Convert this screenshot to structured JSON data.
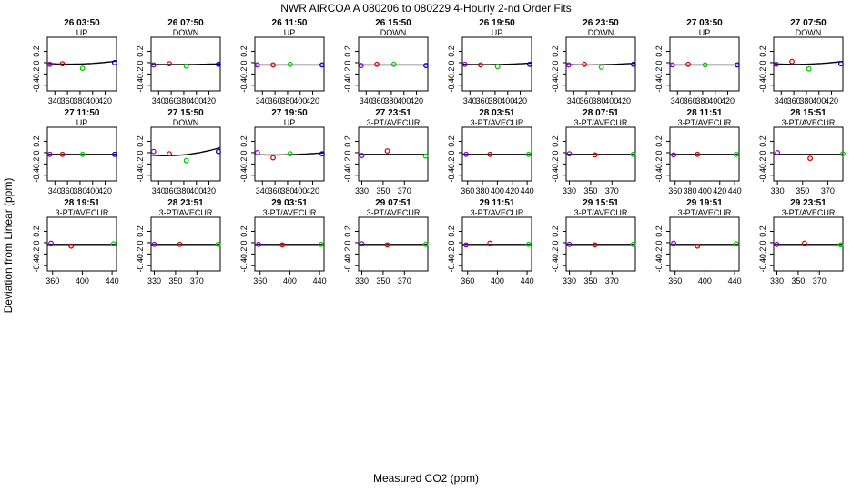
{
  "page": {
    "title": "NWR   AIRCOA A   080206 to 080229   4-Hourly 2-nd Order Fits",
    "xlabel": "Measured CO2 (ppm)",
    "ylabel": "Deviation from Linear (ppm)"
  },
  "colors": {
    "axis": "#000000",
    "curve": "#000000",
    "point_low": "#8800cc",
    "point_mid": "#dd0000",
    "point_high": "#00cc00",
    "point_top": "#0000cc"
  },
  "chart_data": [
    {
      "type": "scatter",
      "title": "26 03:50",
      "subtitle": "UP",
      "ylim": [
        -0.5,
        0.45
      ],
      "yticks": [
        -0.4,
        -0.2,
        0,
        0.2
      ],
      "xlim": [
        328,
        438
      ],
      "xticks": [
        340,
        360,
        380,
        400,
        420
      ],
      "points": [
        [
          332,
          -0.03
        ],
        [
          352,
          -0.02
        ],
        [
          384,
          -0.1
        ],
        [
          435,
          0.0
        ]
      ],
      "curve": [
        -0.014,
        -0.077,
        0.12
      ]
    },
    {
      "type": "scatter",
      "title": "26 07:50",
      "subtitle": "DOWN",
      "ylim": [
        -0.5,
        0.45
      ],
      "yticks": [
        -0.4,
        -0.2,
        0,
        0.2
      ],
      "xlim": [
        328,
        438
      ],
      "xticks": [
        340,
        360,
        380,
        400,
        420
      ],
      "points": [
        [
          332,
          -0.04
        ],
        [
          357,
          -0.02
        ],
        [
          384,
          -0.06
        ],
        [
          435,
          -0.03
        ]
      ],
      "curve": [
        -0.03,
        -0.02,
        0.03
      ]
    },
    {
      "type": "scatter",
      "title": "26 11:50",
      "subtitle": "UP",
      "ylim": [
        -0.5,
        0.45
      ],
      "yticks": [
        -0.4,
        -0.2,
        0,
        0.2
      ],
      "xlim": [
        328,
        438
      ],
      "xticks": [
        340,
        360,
        380,
        400,
        420
      ],
      "points": [
        [
          332,
          -0.04
        ],
        [
          357,
          -0.04
        ],
        [
          384,
          -0.03
        ],
        [
          435,
          -0.04
        ]
      ],
      "curve": [
        -0.04,
        0,
        0
      ]
    },
    {
      "type": "scatter",
      "title": "26 15:50",
      "subtitle": "DOWN",
      "ylim": [
        -0.5,
        0.45
      ],
      "yticks": [
        -0.4,
        -0.2,
        0,
        0.2
      ],
      "xlim": [
        328,
        438
      ],
      "xticks": [
        340,
        360,
        380,
        400,
        420
      ],
      "points": [
        [
          332,
          -0.05
        ],
        [
          357,
          -0.03
        ],
        [
          384,
          -0.03
        ],
        [
          435,
          -0.05
        ]
      ],
      "curve": [
        -0.04,
        0,
        0
      ]
    },
    {
      "type": "scatter",
      "title": "26 19:50",
      "subtitle": "UP",
      "ylim": [
        -0.5,
        0.45
      ],
      "yticks": [
        -0.4,
        -0.2,
        0,
        0.2
      ],
      "xlim": [
        328,
        438
      ],
      "xticks": [
        340,
        360,
        380,
        400,
        420
      ],
      "points": [
        [
          332,
          -0.03
        ],
        [
          357,
          -0.04
        ],
        [
          384,
          -0.07
        ],
        [
          435,
          -0.03
        ]
      ],
      "curve": [
        -0.028,
        -0.039,
        0.06
      ]
    },
    {
      "type": "scatter",
      "title": "26 23:50",
      "subtitle": "DOWN",
      "ylim": [
        -0.5,
        0.45
      ],
      "yticks": [
        -0.4,
        -0.2,
        0,
        0.2
      ],
      "xlim": [
        328,
        438
      ],
      "xticks": [
        340,
        360,
        380,
        400,
        420
      ],
      "points": [
        [
          332,
          -0.04
        ],
        [
          357,
          -0.03
        ],
        [
          384,
          -0.08
        ],
        [
          435,
          -0.03
        ]
      ],
      "curve": [
        -0.034,
        -0.035,
        0.06
      ]
    },
    {
      "type": "scatter",
      "title": "27 03:50",
      "subtitle": "UP",
      "ylim": [
        -0.5,
        0.45
      ],
      "yticks": [
        -0.4,
        -0.2,
        0,
        0.2
      ],
      "xlim": [
        328,
        438
      ],
      "xticks": [
        340,
        360,
        380,
        400,
        420
      ],
      "points": [
        [
          332,
          -0.04
        ],
        [
          357,
          -0.03
        ],
        [
          384,
          -0.04
        ],
        [
          435,
          -0.04
        ]
      ],
      "curve": [
        -0.04,
        0,
        0
      ]
    },
    {
      "type": "scatter",
      "title": "27 07:50",
      "subtitle": "DOWN",
      "ylim": [
        -0.5,
        0.45
      ],
      "yticks": [
        -0.4,
        -0.2,
        0,
        0.2
      ],
      "xlim": [
        328,
        438
      ],
      "xticks": [
        340,
        360,
        380,
        400,
        420
      ],
      "points": [
        [
          332,
          -0.03
        ],
        [
          357,
          0.02
        ],
        [
          384,
          -0.11
        ],
        [
          435,
          -0.02
        ]
      ],
      "curve": [
        -0.019,
        -0.069,
        0.11
      ]
    },
    {
      "type": "scatter",
      "title": "27 11:50",
      "subtitle": "UP",
      "ylim": [
        -0.5,
        0.45
      ],
      "yticks": [
        -0.4,
        -0.2,
        0,
        0.2
      ],
      "xlim": [
        328,
        438
      ],
      "xticks": [
        340,
        360,
        380,
        400,
        420
      ],
      "points": [
        [
          332,
          -0.03
        ],
        [
          352,
          -0.03
        ],
        [
          384,
          -0.03
        ],
        [
          435,
          -0.03
        ]
      ],
      "curve": [
        -0.03,
        0,
        0
      ]
    },
    {
      "type": "scatter",
      "title": "27 15:50",
      "subtitle": "DOWN",
      "ylim": [
        -0.5,
        0.45
      ],
      "yticks": [
        -0.4,
        -0.2,
        0,
        0.2
      ],
      "xlim": [
        328,
        438
      ],
      "xticks": [
        340,
        360,
        380,
        400,
        420
      ],
      "points": [
        [
          332,
          0.02
        ],
        [
          357,
          -0.02
        ],
        [
          384,
          -0.14
        ],
        [
          435,
          0.02
        ]
      ],
      "curve": [
        -0.044,
        -0.096,
        0.23
      ]
    },
    {
      "type": "scatter",
      "title": "27 19:50",
      "subtitle": "UP",
      "ylim": [
        -0.5,
        0.45
      ],
      "yticks": [
        -0.4,
        -0.2,
        0,
        0.2
      ],
      "xlim": [
        328,
        438
      ],
      "xticks": [
        340,
        360,
        380,
        400,
        420
      ],
      "points": [
        [
          332,
          0.0
        ],
        [
          357,
          -0.09
        ],
        [
          384,
          -0.02
        ],
        [
          435,
          -0.02
        ]
      ],
      "curve": [
        -0.035,
        -0.036,
        0.07
      ]
    },
    {
      "type": "scatter",
      "title": "27 23:51",
      "subtitle": "3-PT/AVECUR",
      "ylim": [
        -0.5,
        0.45
      ],
      "yticks": [
        -0.4,
        -0.2,
        0,
        0.2
      ],
      "xlim": [
        327,
        392
      ],
      "xticks": [
        330,
        350,
        370
      ],
      "points": [
        [
          330,
          -0.05
        ],
        [
          354,
          0.03
        ],
        [
          390,
          -0.06
        ]
      ],
      "curve": [
        -0.03,
        0,
        0
      ]
    },
    {
      "type": "scatter",
      "title": "28 03:51",
      "subtitle": "3-PT/AVECUR",
      "ylim": [
        -0.5,
        0.45
      ],
      "yticks": [
        -0.4,
        -0.2,
        0,
        0.2
      ],
      "xlim": [
        353,
        446
      ],
      "xticks": [
        360,
        380,
        400,
        420,
        440
      ],
      "points": [
        [
          358,
          -0.03
        ],
        [
          390,
          -0.03
        ],
        [
          442,
          -0.03
        ]
      ],
      "curve": [
        -0.03,
        0,
        0
      ]
    },
    {
      "type": "scatter",
      "title": "28 07:51",
      "subtitle": "3-PT/AVECUR",
      "ylim": [
        -0.5,
        0.45
      ],
      "yticks": [
        -0.4,
        -0.2,
        0,
        0.2
      ],
      "xlim": [
        327,
        392
      ],
      "xticks": [
        330,
        350,
        370
      ],
      "points": [
        [
          330,
          -0.02
        ],
        [
          354,
          -0.04
        ],
        [
          390,
          -0.03
        ]
      ],
      "curve": [
        -0.03,
        0,
        0
      ]
    },
    {
      "type": "scatter",
      "title": "28 11:51",
      "subtitle": "3-PT/AVECUR",
      "ylim": [
        -0.5,
        0.45
      ],
      "yticks": [
        -0.4,
        -0.2,
        0,
        0.2
      ],
      "xlim": [
        353,
        446
      ],
      "xticks": [
        360,
        380,
        400,
        420,
        440
      ],
      "points": [
        [
          358,
          -0.04
        ],
        [
          390,
          -0.03
        ],
        [
          442,
          -0.03
        ]
      ],
      "curve": [
        -0.03,
        0,
        0
      ]
    },
    {
      "type": "scatter",
      "title": "28 15:51",
      "subtitle": "3-PT/AVECUR",
      "ylim": [
        -0.5,
        0.45
      ],
      "yticks": [
        -0.4,
        -0.2,
        0,
        0.2
      ],
      "xlim": [
        327,
        382
      ],
      "xticks": [
        330,
        350,
        370
      ],
      "points": [
        [
          330,
          0.0
        ],
        [
          356,
          -0.1
        ],
        [
          382,
          -0.02
        ]
      ],
      "curve": [
        -0.03,
        0,
        0
      ]
    },
    {
      "type": "scatter",
      "title": "28 19:51",
      "subtitle": "3-PT/AVECUR",
      "ylim": [
        -0.5,
        0.45
      ],
      "yticks": [
        -0.4,
        -0.2,
        0,
        0.2
      ],
      "xlim": [
        353,
        446
      ],
      "xticks": [
        360,
        400,
        440
      ],
      "points": [
        [
          358,
          -0.01
        ],
        [
          385,
          -0.06
        ],
        [
          442,
          -0.02
        ]
      ],
      "curve": [
        -0.03,
        0,
        0
      ]
    },
    {
      "type": "scatter",
      "title": "28 23:51",
      "subtitle": "3-PT/AVECUR",
      "ylim": [
        -0.5,
        0.45
      ],
      "yticks": [
        -0.4,
        -0.2,
        0,
        0.2
      ],
      "xlim": [
        327,
        392
      ],
      "xticks": [
        330,
        350,
        370
      ],
      "points": [
        [
          330,
          -0.03
        ],
        [
          354,
          -0.03
        ],
        [
          390,
          -0.03
        ]
      ],
      "curve": [
        -0.03,
        0,
        0
      ]
    },
    {
      "type": "scatter",
      "title": "29 03:51",
      "subtitle": "3-PT/AVECUR",
      "ylim": [
        -0.5,
        0.45
      ],
      "yticks": [
        -0.4,
        -0.2,
        0,
        0.2
      ],
      "xlim": [
        353,
        446
      ],
      "xticks": [
        360,
        400,
        440
      ],
      "points": [
        [
          358,
          -0.03
        ],
        [
          390,
          -0.04
        ],
        [
          442,
          -0.03
        ]
      ],
      "curve": [
        -0.03,
        0,
        0
      ]
    },
    {
      "type": "scatter",
      "title": "29 07:51",
      "subtitle": "3-PT/AVECUR",
      "ylim": [
        -0.5,
        0.45
      ],
      "yticks": [
        -0.4,
        -0.2,
        0,
        0.2
      ],
      "xlim": [
        327,
        392
      ],
      "xticks": [
        330,
        350,
        370
      ],
      "points": [
        [
          330,
          -0.02
        ],
        [
          354,
          -0.04
        ],
        [
          390,
          -0.03
        ]
      ],
      "curve": [
        -0.03,
        0,
        0
      ]
    },
    {
      "type": "scatter",
      "title": "29 11:51",
      "subtitle": "3-PT/AVECUR",
      "ylim": [
        -0.5,
        0.45
      ],
      "yticks": [
        -0.4,
        -0.2,
        0,
        0.2
      ],
      "xlim": [
        353,
        446
      ],
      "xticks": [
        360,
        400,
        440
      ],
      "points": [
        [
          358,
          -0.04
        ],
        [
          390,
          -0.01
        ],
        [
          442,
          -0.03
        ]
      ],
      "curve": [
        -0.03,
        0,
        0
      ]
    },
    {
      "type": "scatter",
      "title": "29 15:51",
      "subtitle": "3-PT/AVECUR",
      "ylim": [
        -0.5,
        0.45
      ],
      "yticks": [
        -0.4,
        -0.2,
        0,
        0.2
      ],
      "xlim": [
        327,
        392
      ],
      "xticks": [
        330,
        350,
        370
      ],
      "points": [
        [
          330,
          -0.03
        ],
        [
          354,
          -0.04
        ],
        [
          390,
          -0.03
        ]
      ],
      "curve": [
        -0.03,
        0,
        0
      ]
    },
    {
      "type": "scatter",
      "title": "29 19:51",
      "subtitle": "3-PT/AVECUR",
      "ylim": [
        -0.5,
        0.45
      ],
      "yticks": [
        -0.4,
        -0.2,
        0,
        0.2
      ],
      "xlim": [
        353,
        446
      ],
      "xticks": [
        360,
        400,
        440
      ],
      "points": [
        [
          358,
          -0.01
        ],
        [
          390,
          -0.06
        ],
        [
          442,
          -0.02
        ]
      ],
      "curve": [
        -0.03,
        0,
        0
      ]
    },
    {
      "type": "scatter",
      "title": "29 23:51",
      "subtitle": "3-PT/AVECUR",
      "ylim": [
        -0.5,
        0.45
      ],
      "yticks": [
        -0.4,
        -0.2,
        0,
        0.2
      ],
      "xlim": [
        327,
        392
      ],
      "xticks": [
        330,
        350,
        370
      ],
      "points": [
        [
          330,
          -0.03
        ],
        [
          356,
          -0.01
        ],
        [
          390,
          -0.04
        ]
      ],
      "curve": [
        -0.03,
        0,
        0
      ]
    }
  ]
}
